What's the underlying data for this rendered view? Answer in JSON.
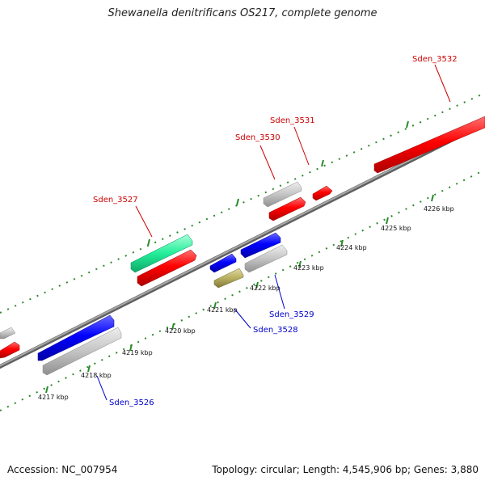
{
  "title": "Shewanella denitrificans OS217, complete genome",
  "footer": {
    "accession": "Accession: NC_007954",
    "genome_info": "Topology: circular; Length: 4,545,906 bp; Genes: 3,880"
  },
  "colors": {
    "forward_gene": "#ff0000",
    "reverse_gene": "#0000ff",
    "other_gene": "#c0c0c0",
    "rna_gene": "#22ee99",
    "misc_feature": "#b8b060",
    "backbone": "#808080",
    "scale_tick": "#2a8a2a",
    "forward_label": "#cc0000",
    "reverse_label": "#0000cc"
  },
  "scale_labels": [
    "4217 kbp",
    "4218 kbp",
    "4219 kbp",
    "4220 kbp",
    "4221 kbp",
    "4222 kbp",
    "4223 kbp",
    "4224 kbp",
    "4225 kbp",
    "4226 kbp"
  ],
  "gene_labels": {
    "sden_3526": "Sden_3526",
    "sden_3527": "Sden_3527",
    "sden_3528": "Sden_3528",
    "sden_3529": "Sden_3529",
    "sden_3530": "Sden_3530",
    "sden_3531": "Sden_3531",
    "sden_3532": "Sden_3532"
  }
}
